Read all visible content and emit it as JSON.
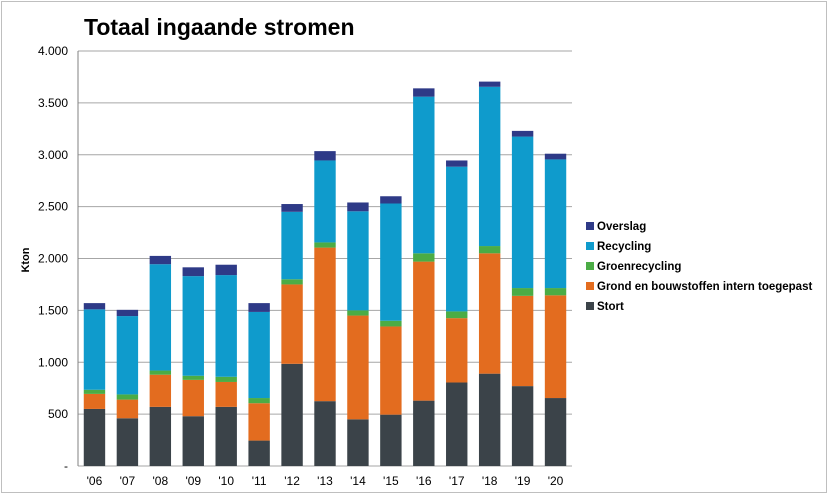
{
  "chart_data": {
    "type": "bar",
    "stacked": true,
    "title": "Totaal ingaande stromen",
    "ylabel": "Kton",
    "xlabel": "",
    "ylim": [
      0,
      4000
    ],
    "yticks": [
      0,
      500,
      1000,
      1500,
      2000,
      2500,
      3000,
      3500,
      4000
    ],
    "ytick_labels": [
      "-",
      "500",
      "1.000",
      "1.500",
      "2.000",
      "2.500",
      "3.000",
      "3.500",
      "4.000"
    ],
    "grid": true,
    "legend_position": "right",
    "categories": [
      "'06",
      "'07",
      "'08",
      "'09",
      "'10",
      "'11",
      "'12",
      "'13",
      "'14",
      "'15",
      "'16",
      "'17",
      "'18",
      "'19",
      "'20"
    ],
    "series": [
      {
        "name": "Stort",
        "color": "#3b4349",
        "values": [
          550,
          460,
          570,
          480,
          570,
          245,
          985,
          625,
          450,
          495,
          630,
          805,
          890,
          770,
          655
        ]
      },
      {
        "name": "Grond en bouwstoffen intern toegepast",
        "color": "#e36c1f",
        "values": [
          145,
          180,
          310,
          350,
          240,
          360,
          765,
          1480,
          1000,
          850,
          1340,
          620,
          1160,
          870,
          990
        ]
      },
      {
        "name": "Groenrecycling",
        "color": "#4bac45",
        "values": [
          40,
          50,
          40,
          40,
          50,
          50,
          50,
          50,
          50,
          55,
          80,
          65,
          70,
          75,
          70
        ]
      },
      {
        "name": "Recycling",
        "color": "#0f9bcc",
        "values": [
          775,
          755,
          1025,
          960,
          980,
          830,
          650,
          790,
          955,
          1130,
          1510,
          1395,
          1535,
          1460,
          1240
        ]
      },
      {
        "name": "Overslag",
        "color": "#2e3a87",
        "values": [
          60,
          60,
          80,
          85,
          100,
          85,
          75,
          90,
          85,
          70,
          80,
          60,
          50,
          55,
          55
        ]
      }
    ],
    "legend_order": [
      "Overslag",
      "Recycling",
      "Groenrecycling",
      "Grond en bouwstoffen intern toegepast",
      "Stort"
    ]
  }
}
